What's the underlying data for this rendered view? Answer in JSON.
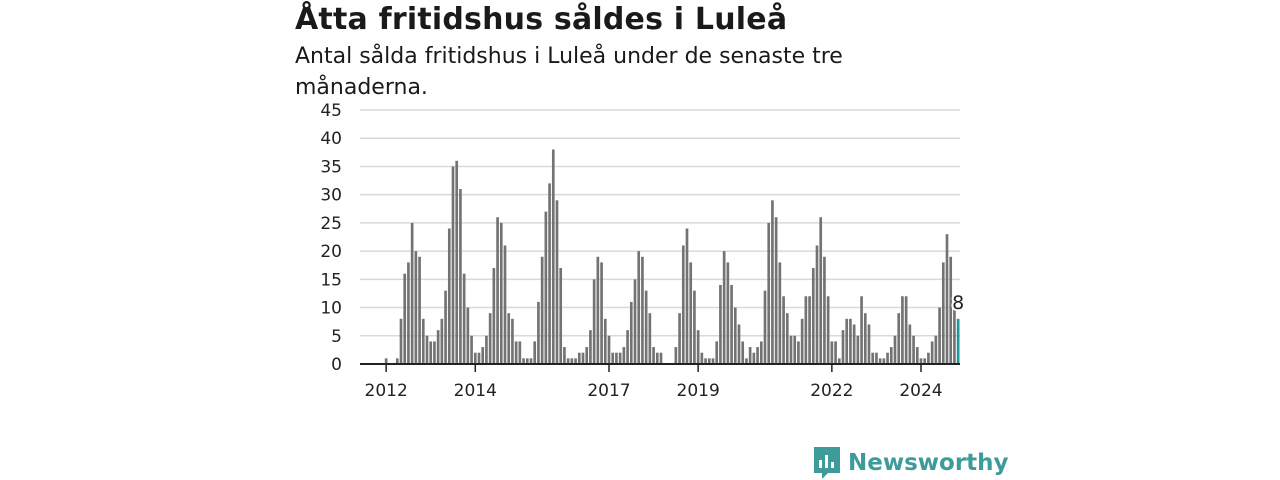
{
  "title": "Åtta fritidshus såldes i Luleå",
  "subtitle": "Antal sålda fritidshus i Luleå under de senaste tre månaderna.",
  "brand": "Newsworthy",
  "colors": {
    "bar": "#737373",
    "highlight": "#1a9996",
    "grid": "#d9d9d9",
    "axis": "#222222",
    "brand": "#3f9a9a"
  },
  "chart_data": {
    "type": "bar",
    "title": "Åtta fritidshus såldes i Luleå",
    "subtitle": "Antal sålda fritidshus i Luleå under de senaste tre månaderna.",
    "xlabel": "",
    "ylabel": "",
    "ylim": [
      0,
      45
    ],
    "yticks": [
      0,
      5,
      10,
      15,
      20,
      25,
      30,
      35,
      40,
      45
    ],
    "xtick_labels": [
      {
        "label": "2012",
        "index": 6
      },
      {
        "label": "2014",
        "index": 30
      },
      {
        "label": "2017",
        "index": 66
      },
      {
        "label": "2019",
        "index": 90
      },
      {
        "label": "2022",
        "index": 126
      },
      {
        "label": "2024",
        "index": 150
      }
    ],
    "grid": true,
    "highlight_last": true,
    "annotation": "8",
    "values": [
      0,
      0,
      0,
      0,
      0,
      0,
      1,
      0,
      0,
      1,
      8,
      16,
      18,
      25,
      20,
      19,
      8,
      5,
      4,
      4,
      6,
      8,
      13,
      24,
      35,
      36,
      31,
      16,
      10,
      5,
      2,
      2,
      3,
      5,
      9,
      17,
      26,
      25,
      21,
      9,
      8,
      4,
      4,
      1,
      1,
      1,
      4,
      11,
      19,
      27,
      32,
      38,
      29,
      17,
      3,
      1,
      1,
      1,
      2,
      2,
      3,
      6,
      15,
      19,
      18,
      8,
      5,
      2,
      2,
      2,
      3,
      6,
      11,
      15,
      20,
      19,
      13,
      9,
      3,
      2,
      2,
      0,
      0,
      0,
      3,
      9,
      21,
      24,
      18,
      13,
      6,
      2,
      1,
      1,
      1,
      4,
      14,
      20,
      18,
      14,
      10,
      7,
      4,
      1,
      3,
      2,
      3,
      4,
      13,
      25,
      29,
      26,
      18,
      12,
      9,
      5,
      5,
      4,
      8,
      12,
      12,
      17,
      21,
      26,
      19,
      12,
      4,
      4,
      1,
      6,
      8,
      8,
      7,
      5,
      12,
      9,
      7,
      2,
      2,
      1,
      1,
      2,
      3,
      5,
      9,
      12,
      12,
      7,
      5,
      3,
      1,
      1,
      2,
      4,
      5,
      10,
      18,
      23,
      19,
      10,
      8
    ]
  }
}
